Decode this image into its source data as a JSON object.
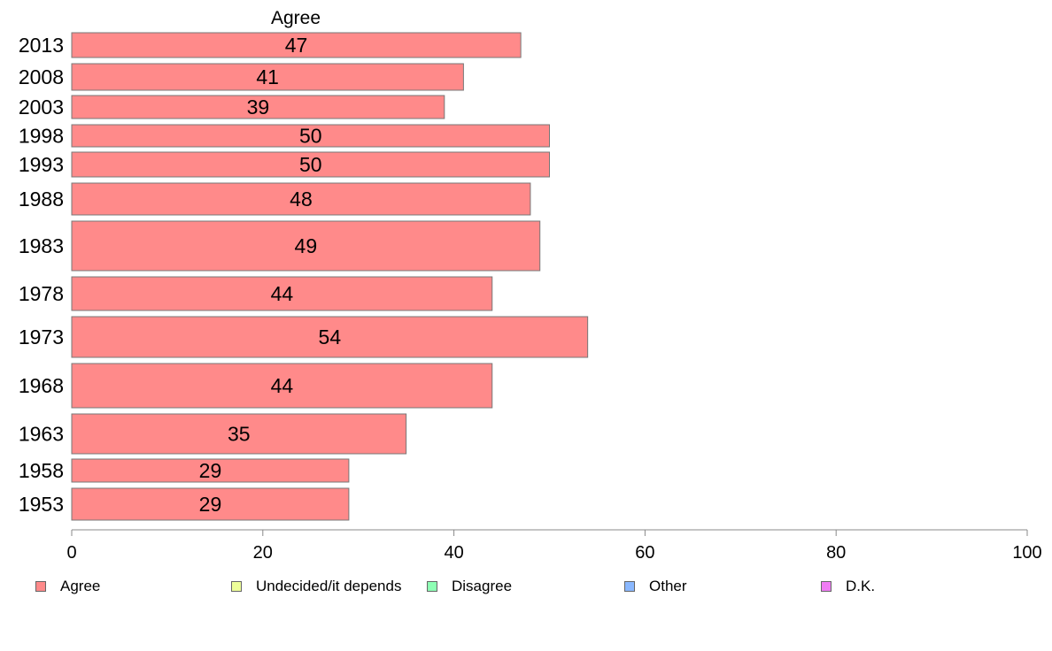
{
  "chart_data": {
    "type": "bar",
    "orientation": "horizontal",
    "title": "Agree",
    "categories": [
      "2013",
      "2008",
      "2003",
      "1998",
      "1993",
      "1988",
      "1983",
      "1978",
      "1973",
      "1968",
      "1963",
      "1958",
      "1953"
    ],
    "series": [
      {
        "name": "Agree",
        "color": "#ff8a8a",
        "values": [
          47,
          41,
          39,
          50,
          50,
          48,
          49,
          44,
          54,
          44,
          35,
          29,
          29
        ]
      }
    ],
    "value_labels": [
      "47",
      "41",
      "39",
      "50",
      "50",
      "48",
      "49",
      "44",
      "54",
      "44",
      "35",
      "29",
      "29"
    ],
    "xlim": [
      0,
      100
    ],
    "xticks": [
      0,
      20,
      40,
      60,
      80,
      100
    ],
    "xtick_labels": [
      "0",
      "20",
      "40",
      "60",
      "80",
      "100"
    ],
    "grid": false,
    "legend_position": "bottom",
    "legend": [
      {
        "label": "Agree",
        "color": "#ff8a8a"
      },
      {
        "label": "Undecided/it depends",
        "color": "#eeff99"
      },
      {
        "label": "Disagree",
        "color": "#8effb4"
      },
      {
        "label": "Other",
        "color": "#8ab8ff"
      },
      {
        "label": "D.K.",
        "color": "#f07cf4"
      }
    ]
  }
}
